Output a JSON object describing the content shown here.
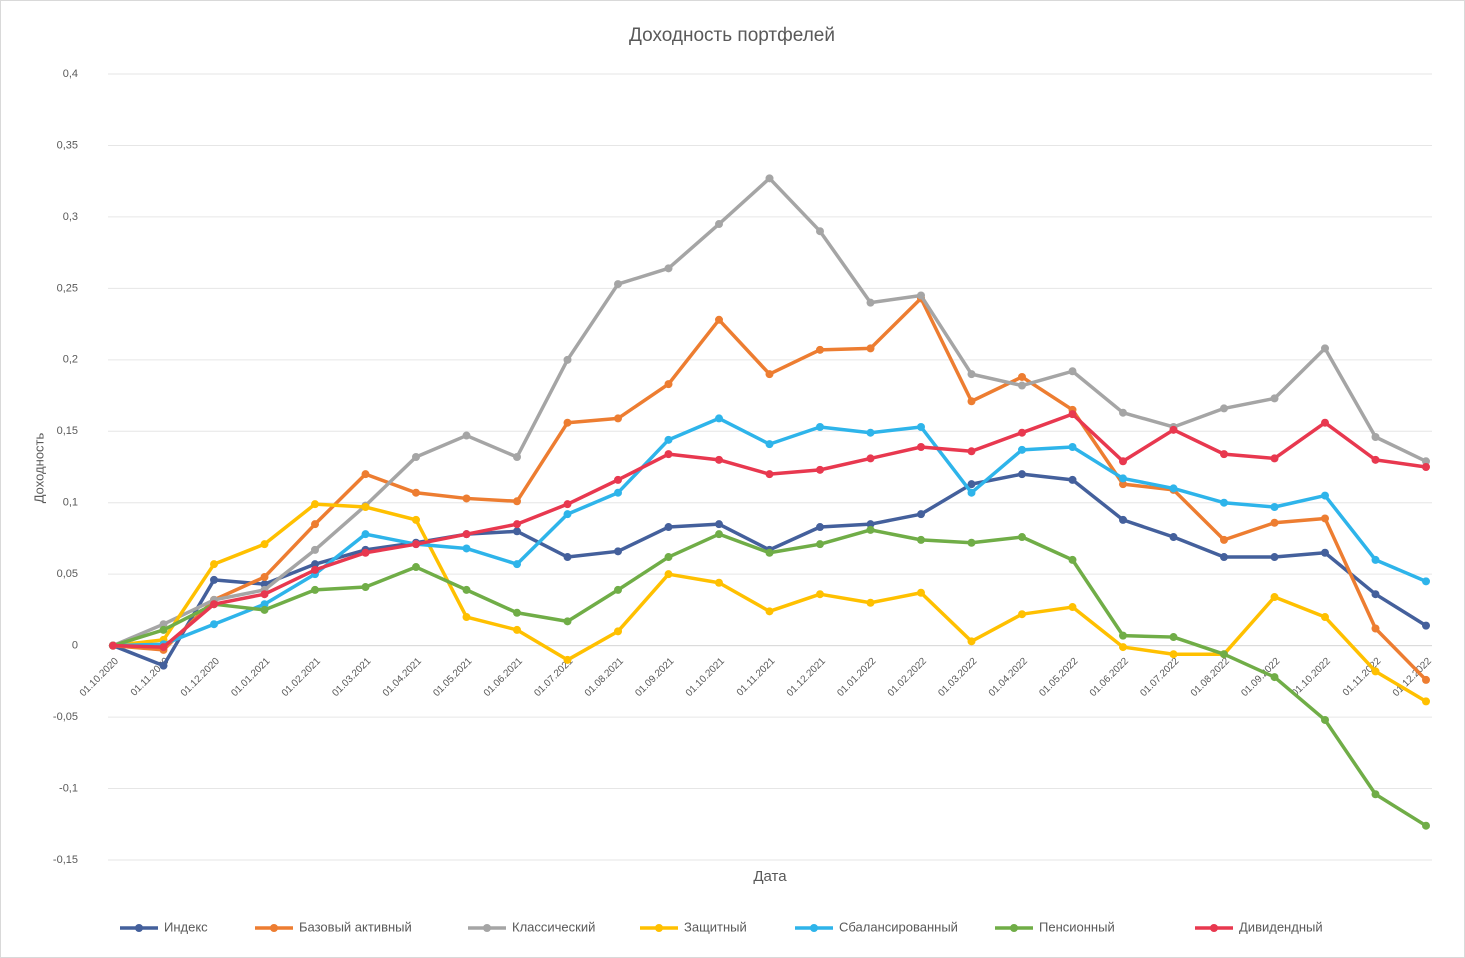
{
  "chart_data": {
    "type": "line",
    "title": "Доходность портфелей",
    "x_label": "Дата",
    "y_label": "Доходность",
    "categories": [
      "01.10.2020",
      "01.11.2020",
      "01.12.2020",
      "01.01.2021",
      "01.02.2021",
      "01.03.2021",
      "01.04.2021",
      "01.05.2021",
      "01.06.2021",
      "01.07.2021",
      "01.08.2021",
      "01.09.2021",
      "01.10.2021",
      "01.11.2021",
      "01.12.2021",
      "01.01.2022",
      "01.02.2022",
      "01.03.2022",
      "01.04.2022",
      "01.05.2022",
      "01.06.2022",
      "01.07.2022",
      "01.08.2022",
      "01.09.2022",
      "01.10.2022",
      "01.11.2022",
      "01.12.2022"
    ],
    "ylim": [
      -0.15,
      0.4
    ],
    "yticks": [
      {
        "value": -0.15,
        "label": "-0,15"
      },
      {
        "value": -0.1,
        "label": "-0,1"
      },
      {
        "value": -0.05,
        "label": "-0,05"
      },
      0,
      {
        "value": 0.05,
        "label": "0,05"
      },
      {
        "value": 0.1,
        "label": "0,1"
      },
      {
        "value": 0.15,
        "label": "0,15"
      },
      {
        "value": 0.2,
        "label": "0,2"
      },
      {
        "value": 0.25,
        "label": "0,25"
      },
      {
        "value": 0.3,
        "label": "0,3"
      },
      {
        "value": 0.35,
        "label": "0,35"
      },
      {
        "value": 0.4,
        "label": "0,4"
      }
    ],
    "grid": true,
    "legend": "bottom",
    "series": [
      {
        "name": "Индекс",
        "color": "#44609c",
        "values": [
          0,
          -0.014,
          0.046,
          0.043,
          0.057,
          0.067,
          0.072,
          0.078,
          0.08,
          0.062,
          0.066,
          0.083,
          0.085,
          0.067,
          0.083,
          0.085,
          0.092,
          0.113,
          0.12,
          0.116,
          0.088,
          0.076,
          0.062,
          0.062,
          0.065,
          0.036,
          0.014
        ]
      },
      {
        "name": "Базовый активный",
        "color": "#ed7d31",
        "values": [
          0,
          -0.003,
          0.032,
          0.048,
          0.085,
          0.12,
          0.107,
          0.103,
          0.101,
          0.156,
          0.159,
          0.183,
          0.228,
          0.19,
          0.207,
          0.208,
          0.243,
          0.171,
          0.188,
          0.165,
          0.113,
          0.109,
          0.074,
          0.086,
          0.089,
          0.012,
          -0.024
        ]
      },
      {
        "name": "Классический",
        "color": "#a5a5a5",
        "values": [
          0,
          0.015,
          0.032,
          0.039,
          0.067,
          0.098,
          0.132,
          0.147,
          0.132,
          0.2,
          0.253,
          0.264,
          0.295,
          0.327,
          0.29,
          0.24,
          0.245,
          0.19,
          0.182,
          0.192,
          0.163,
          0.153,
          0.166,
          0.173,
          0.208,
          0.146,
          0.129
        ]
      },
      {
        "name": "Защитный",
        "color": "#ffc000",
        "values": [
          0,
          0.004,
          0.057,
          0.071,
          0.099,
          0.097,
          0.088,
          0.02,
          0.011,
          -0.01,
          0.01,
          0.05,
          0.044,
          0.024,
          0.036,
          0.03,
          0.037,
          0.003,
          0.022,
          0.027,
          -0.001,
          -0.006,
          -0.006,
          0.034,
          0.02,
          -0.018,
          -0.039
        ]
      },
      {
        "name": "Сбалансированный",
        "color": "#2eb4ea",
        "values": [
          0,
          0.001,
          0.015,
          0.029,
          0.05,
          0.078,
          0.071,
          0.068,
          0.057,
          0.092,
          0.107,
          0.144,
          0.159,
          0.141,
          0.153,
          0.149,
          0.153,
          0.107,
          0.137,
          0.139,
          0.117,
          0.11,
          0.1,
          0.097,
          0.105,
          0.06,
          0.045
        ]
      },
      {
        "name": "Пенсионный",
        "color": "#70ad47",
        "values": [
          0,
          0.011,
          0.029,
          0.025,
          0.039,
          0.041,
          0.055,
          0.039,
          0.023,
          0.017,
          0.039,
          0.062,
          0.078,
          0.065,
          0.071,
          0.081,
          0.074,
          0.072,
          0.076,
          0.06,
          0.007,
          0.006,
          -0.006,
          -0.022,
          -0.052,
          -0.104,
          -0.126
        ]
      },
      {
        "name": "Дивидендный",
        "color": "#e8384f",
        "values": [
          0,
          -0.001,
          0.029,
          0.036,
          0.053,
          0.065,
          0.071,
          0.078,
          0.085,
          0.099,
          0.116,
          0.134,
          0.13,
          0.12,
          0.123,
          0.131,
          0.139,
          0.136,
          0.149,
          0.162,
          0.129,
          0.151,
          0.134,
          0.131,
          0.156,
          0.13,
          0.125
        ]
      }
    ]
  }
}
